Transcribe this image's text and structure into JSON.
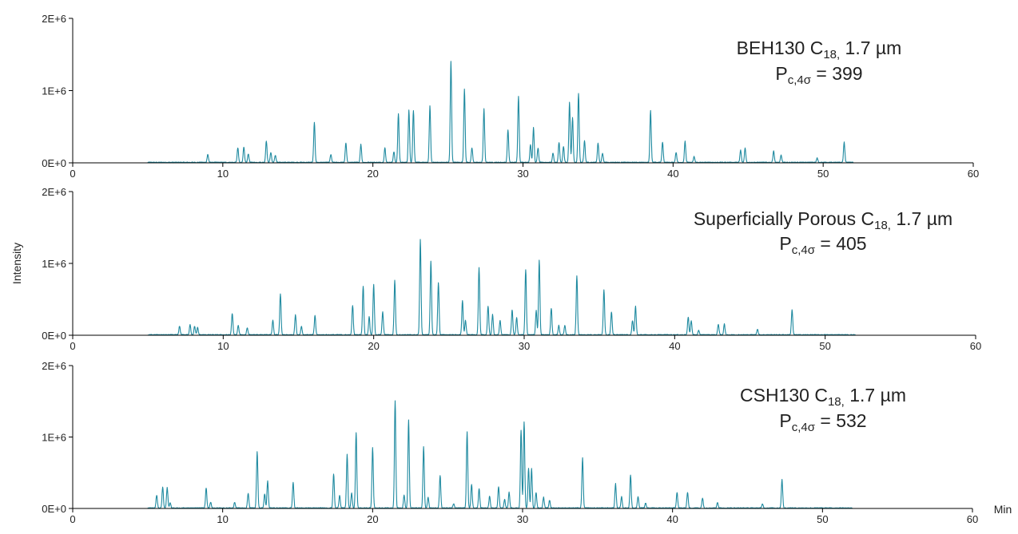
{
  "figure": {
    "ylabel": "Intensity",
    "xunit_label": "Min",
    "trace_color": "#1f8aa0",
    "axis_color": "#000000"
  },
  "chart_data": [
    {
      "type": "line",
      "title_line1_parts": [
        "BEH130 C",
        "18,",
        " 1.7 µm"
      ],
      "title_line2_parts": [
        "P",
        "c,4σ",
        " = 399"
      ],
      "xlim": [
        0,
        60
      ],
      "ylim": [
        0,
        2000000
      ],
      "xticks": [
        0,
        10,
        20,
        30,
        40,
        50,
        60
      ],
      "xtick_labels": [
        "0",
        "10",
        "20",
        "30",
        "40",
        "50",
        "60"
      ],
      "yticks": [
        0,
        1000000,
        2000000
      ],
      "ytick_labels": [
        "0E+0",
        "1E+6",
        "2E+6"
      ],
      "grid": false,
      "series": [
        {
          "peaks": [
            [
              9.0,
              0.11
            ],
            [
              11.0,
              0.2
            ],
            [
              11.4,
              0.21
            ],
            [
              11.7,
              0.12
            ],
            [
              12.9,
              0.3
            ],
            [
              13.2,
              0.14
            ],
            [
              13.5,
              0.1
            ],
            [
              16.1,
              0.55
            ],
            [
              17.2,
              0.11
            ],
            [
              18.2,
              0.27
            ],
            [
              19.2,
              0.25
            ],
            [
              20.8,
              0.2
            ],
            [
              21.4,
              0.15
            ],
            [
              21.7,
              0.67
            ],
            [
              22.4,
              0.72
            ],
            [
              22.7,
              0.72
            ],
            [
              23.8,
              0.78
            ],
            [
              25.2,
              1.4
            ],
            [
              26.1,
              1.02
            ],
            [
              26.6,
              0.2
            ],
            [
              27.4,
              0.74
            ],
            [
              29.0,
              0.45
            ],
            [
              29.7,
              0.92
            ],
            [
              30.5,
              0.25
            ],
            [
              30.7,
              0.48
            ],
            [
              31.0,
              0.2
            ],
            [
              32.0,
              0.13
            ],
            [
              32.4,
              0.28
            ],
            [
              32.7,
              0.22
            ],
            [
              33.1,
              0.83
            ],
            [
              33.3,
              0.62
            ],
            [
              33.7,
              0.95
            ],
            [
              34.1,
              0.3
            ],
            [
              35.0,
              0.27
            ],
            [
              35.3,
              0.13
            ],
            [
              38.5,
              0.72
            ],
            [
              39.3,
              0.28
            ],
            [
              40.2,
              0.14
            ],
            [
              40.8,
              0.29
            ],
            [
              41.4,
              0.08
            ],
            [
              44.5,
              0.17
            ],
            [
              44.8,
              0.2
            ],
            [
              46.7,
              0.16
            ],
            [
              47.2,
              0.1
            ],
            [
              49.6,
              0.06
            ],
            [
              51.4,
              0.28
            ]
          ]
        }
      ]
    },
    {
      "type": "line",
      "title_line1_parts": [
        "Superficially Porous C",
        "18,",
        " 1.7 µm"
      ],
      "title_line2_parts": [
        "P",
        "c,4σ",
        " = 405"
      ],
      "xlim": [
        0,
        60
      ],
      "ylim": [
        0,
        2000000
      ],
      "xticks": [
        0,
        10,
        20,
        30,
        40,
        50,
        60
      ],
      "xtick_labels": [
        "0",
        "10",
        "20",
        "30",
        "40",
        "50",
        "60"
      ],
      "yticks": [
        0,
        1000000,
        2000000
      ],
      "ytick_labels": [
        "0E+0",
        "1E+6",
        "2E+6"
      ],
      "grid": false,
      "series": [
        {
          "peaks": [
            [
              7.1,
              0.12
            ],
            [
              7.8,
              0.14
            ],
            [
              8.1,
              0.12
            ],
            [
              8.3,
              0.1
            ],
            [
              10.6,
              0.3
            ],
            [
              11.0,
              0.13
            ],
            [
              11.6,
              0.1
            ],
            [
              13.3,
              0.2
            ],
            [
              13.8,
              0.57
            ],
            [
              14.8,
              0.28
            ],
            [
              15.2,
              0.12
            ],
            [
              16.1,
              0.27
            ],
            [
              18.6,
              0.41
            ],
            [
              19.3,
              0.68
            ],
            [
              19.7,
              0.25
            ],
            [
              20.0,
              0.7
            ],
            [
              20.6,
              0.32
            ],
            [
              21.4,
              0.76
            ],
            [
              23.1,
              1.33
            ],
            [
              23.8,
              1.03
            ],
            [
              24.3,
              0.73
            ],
            [
              25.9,
              0.48
            ],
            [
              26.1,
              0.2
            ],
            [
              27.0,
              0.93
            ],
            [
              27.6,
              0.4
            ],
            [
              27.9,
              0.28
            ],
            [
              28.4,
              0.2
            ],
            [
              29.2,
              0.35
            ],
            [
              29.5,
              0.24
            ],
            [
              30.1,
              0.91
            ],
            [
              30.8,
              0.34
            ],
            [
              31.0,
              1.04
            ],
            [
              31.8,
              0.37
            ],
            [
              32.3,
              0.13
            ],
            [
              32.7,
              0.13
            ],
            [
              33.5,
              0.82
            ],
            [
              35.3,
              0.63
            ],
            [
              35.8,
              0.32
            ],
            [
              37.2,
              0.2
            ],
            [
              37.4,
              0.4
            ],
            [
              40.9,
              0.25
            ],
            [
              41.1,
              0.2
            ],
            [
              41.6,
              0.06
            ],
            [
              42.9,
              0.15
            ],
            [
              43.3,
              0.15
            ],
            [
              45.5,
              0.08
            ],
            [
              47.8,
              0.35
            ]
          ]
        }
      ]
    },
    {
      "type": "line",
      "title_line1_parts": [
        "CSH130 C",
        "18,",
        " 1.7 µm"
      ],
      "title_line2_parts": [
        "P",
        "c,4σ",
        " = 532"
      ],
      "xlim": [
        0,
        60
      ],
      "ylim": [
        0,
        2000000
      ],
      "xticks": [
        0,
        10,
        20,
        30,
        40,
        50,
        60
      ],
      "xtick_labels": [
        "0",
        "10",
        "20",
        "30",
        "40",
        "50",
        "60"
      ],
      "yticks": [
        0,
        1000000,
        2000000
      ],
      "ytick_labels": [
        "0E+0",
        "1E+6",
        "2E+6"
      ],
      "grid": false,
      "series": [
        {
          "peaks": [
            [
              5.6,
              0.18
            ],
            [
              6.0,
              0.29
            ],
            [
              6.3,
              0.29
            ],
            [
              6.5,
              0.07
            ],
            [
              8.9,
              0.28
            ],
            [
              9.2,
              0.08
            ],
            [
              10.8,
              0.08
            ],
            [
              11.7,
              0.21
            ],
            [
              12.3,
              0.79
            ],
            [
              12.8,
              0.2
            ],
            [
              13.0,
              0.38
            ],
            [
              14.7,
              0.36
            ],
            [
              17.4,
              0.48
            ],
            [
              17.8,
              0.18
            ],
            [
              18.3,
              0.75
            ],
            [
              18.6,
              0.21
            ],
            [
              18.9,
              1.05
            ],
            [
              20.0,
              0.85
            ],
            [
              21.5,
              1.5
            ],
            [
              22.1,
              0.18
            ],
            [
              22.4,
              1.24
            ],
            [
              23.4,
              0.86
            ],
            [
              23.7,
              0.15
            ],
            [
              24.5,
              0.46
            ],
            [
              25.4,
              0.06
            ],
            [
              26.3,
              1.07
            ],
            [
              26.6,
              0.33
            ],
            [
              27.1,
              0.27
            ],
            [
              27.8,
              0.16
            ],
            [
              28.4,
              0.3
            ],
            [
              28.8,
              0.12
            ],
            [
              29.1,
              0.22
            ],
            [
              29.9,
              1.09
            ],
            [
              30.1,
              1.21
            ],
            [
              30.4,
              0.55
            ],
            [
              30.6,
              0.55
            ],
            [
              30.9,
              0.22
            ],
            [
              31.4,
              0.15
            ],
            [
              31.8,
              0.11
            ],
            [
              34.0,
              0.7
            ],
            [
              36.2,
              0.34
            ],
            [
              36.6,
              0.16
            ],
            [
              37.2,
              0.46
            ],
            [
              37.7,
              0.16
            ],
            [
              38.2,
              0.07
            ],
            [
              40.3,
              0.22
            ],
            [
              41.0,
              0.22
            ],
            [
              42.0,
              0.14
            ],
            [
              43.0,
              0.08
            ],
            [
              46.0,
              0.06
            ],
            [
              47.3,
              0.4
            ]
          ]
        }
      ]
    }
  ]
}
